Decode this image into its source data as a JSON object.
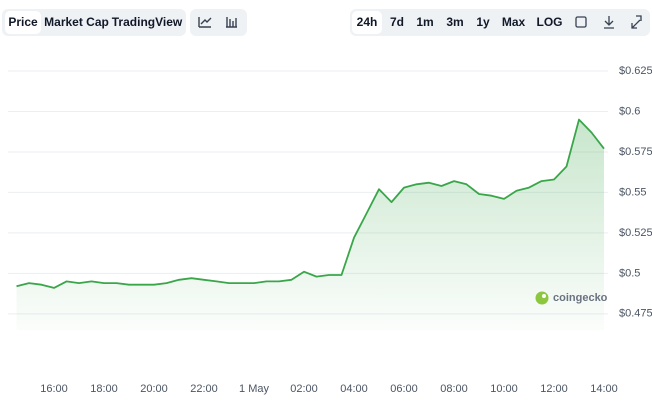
{
  "toolbar": {
    "views": [
      "Price",
      "Market Cap",
      "TradingView"
    ],
    "active_view": 0,
    "ranges": [
      "24h",
      "7d",
      "1m",
      "3m",
      "1y",
      "Max",
      "LOG"
    ],
    "active_range": 0
  },
  "watermark": "coingecko",
  "chart_data": {
    "type": "area",
    "color": "#3aa64a",
    "categories": [
      null,
      null,
      null,
      "16:00",
      null,
      null,
      null,
      "18:00",
      null,
      null,
      null,
      "20:00",
      null,
      null,
      null,
      "22:00",
      null,
      null,
      null,
      "1 May",
      null,
      null,
      null,
      "02:00",
      null,
      null,
      null,
      "04:00",
      null,
      null,
      null,
      "06:00",
      null,
      null,
      null,
      "08:00",
      null,
      null,
      null,
      "10:00",
      null,
      null,
      null,
      "12:00",
      null,
      null,
      null,
      "14:00"
    ],
    "values": [
      0.492,
      0.494,
      0.493,
      0.491,
      0.495,
      0.494,
      0.495,
      0.494,
      0.494,
      0.493,
      0.493,
      0.493,
      0.494,
      0.496,
      0.497,
      0.496,
      0.495,
      0.494,
      0.494,
      0.494,
      0.495,
      0.495,
      0.496,
      0.501,
      0.498,
      0.499,
      0.499,
      0.522,
      0.537,
      0.552,
      0.544,
      0.553,
      0.555,
      0.556,
      0.554,
      0.557,
      0.555,
      0.549,
      0.548,
      0.546,
      0.551,
      0.553,
      0.557,
      0.558,
      0.566,
      0.595,
      0.587,
      0.577
    ],
    "ylim": [
      0.465,
      0.638
    ],
    "yticks": [
      {
        "value": 0.475,
        "label": "$0.475"
      },
      {
        "value": 0.5,
        "label": "$0.5"
      },
      {
        "value": 0.525,
        "label": "$0.525"
      },
      {
        "value": 0.55,
        "label": "$0.55"
      },
      {
        "value": 0.575,
        "label": "$0.575"
      },
      {
        "value": 0.6,
        "label": "$0.6"
      },
      {
        "value": 0.625,
        "label": "$0.625"
      }
    ],
    "grid": true
  }
}
